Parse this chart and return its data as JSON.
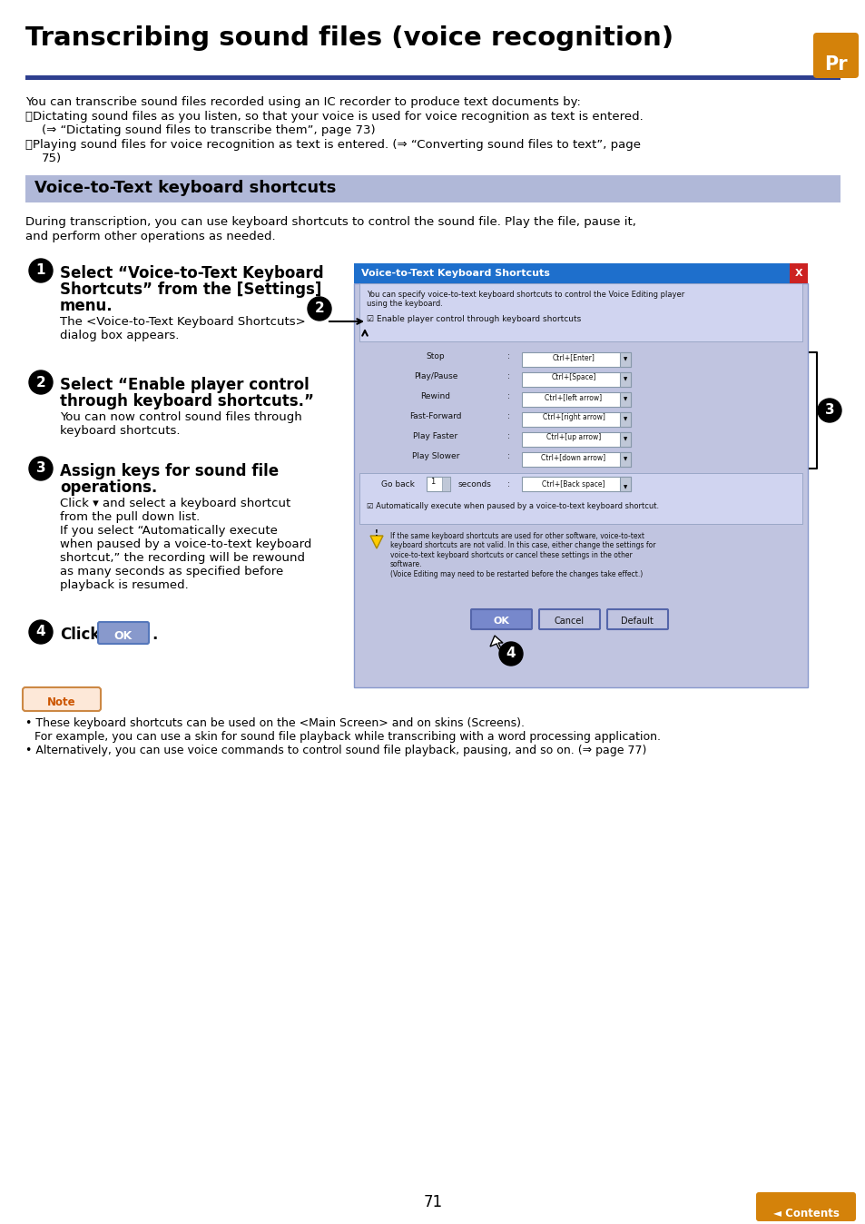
{
  "page_bg": "#ffffff",
  "title": "Transcribing sound files (voice recognition)",
  "title_color": "#000000",
  "title_fontsize": 21,
  "hr_color": "#2e3f8f",
  "section_bg": "#b0b8d8",
  "section_title": "Voice-to-Text keyboard shortcuts",
  "section_title_color": "#000000",
  "section_title_fontsize": 13,
  "body_fontsize": 9.5,
  "body_color": "#000000",
  "page_number": "71",
  "contents_btn_color": "#d4820a",
  "pr_badge_color": "#d4820a",
  "dialog_title": "Voice-to-Text Keyboard Shortcuts",
  "dialog_title_bg": "#1e6fcc",
  "dialog_body_bg": "#c0c4e0",
  "dialog_inner_bg": "#d0d4f0",
  "ok_btn_color": "#8899cc",
  "note_header_color": "#cc5500",
  "note_border_color": "#cc8844",
  "note_bg": "#fde8d8"
}
